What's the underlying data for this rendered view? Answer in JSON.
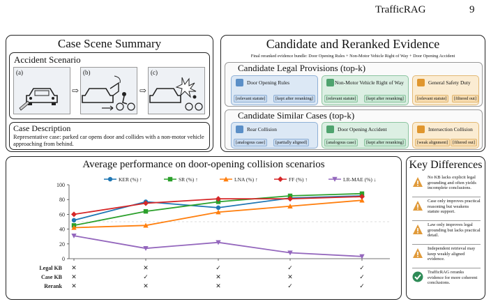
{
  "header": {
    "title": "TrafficRAG",
    "page": "9"
  },
  "case_summary": {
    "title": "Case Scene Summary",
    "accident_label": "Accident Scenario",
    "scene_labels": [
      "(a)",
      "(b)",
      "(c)"
    ],
    "arrow": "⇨",
    "description_label": "Case Description",
    "description": "Representative case: parked car opens door and collides with a non-motor vehicle approaching from behind."
  },
  "evidence": {
    "title": "Candidate and Reranked Evidence",
    "bundle": "Final reranked evidence bundle: Door Opening Rules + Non-Motor Vehicle Right of Way + Door Opening Accident",
    "legal_title": "Candidate Legal Provisions (top-k)",
    "legal": [
      {
        "name": "Door Opening Rules",
        "tags": [
          "[relevant statute]",
          "[kept after reranking]"
        ],
        "color": "#dce8f5"
      },
      {
        "name": "Non-Motor Vehicle Right of Way",
        "tags": [
          "[relevant statute]",
          "[kept after reranking]"
        ],
        "color": "#dcefe3"
      },
      {
        "name": "General Safety Duty",
        "tags": [
          "[relevant statute]",
          "[filtered out]"
        ],
        "color": "#fbecd2"
      }
    ],
    "cases_title": "Candidate Similar Cases (top-k)",
    "cases": [
      {
        "name": "Rear Collision",
        "tags": [
          "[analogous case]",
          "[partially aligned]"
        ],
        "color": "#dce8f5"
      },
      {
        "name": "Door Opening Accident",
        "tags": [
          "[analogous case]",
          "[kept after reranking]"
        ],
        "color": "#dcefe3"
      },
      {
        "name": "Intersection Collision",
        "tags": [
          "[weak alignment]",
          "[filtered out]"
        ],
        "color": "#fbecd2"
      }
    ]
  },
  "chart_data": {
    "type": "line",
    "title": "Average performance on door-opening collision scenarios",
    "ylim": [
      0,
      100
    ],
    "yticks": [
      0,
      20,
      40,
      60,
      80,
      100
    ],
    "grid": false,
    "legend_position": "top",
    "series": [
      {
        "name": "KER (%) ↑",
        "color": "#1f77b4",
        "marker": "circle",
        "values": [
          52,
          77,
          69,
          82,
          85
        ]
      },
      {
        "name": "SR (%) ↑",
        "color": "#2ca02c",
        "marker": "square",
        "values": [
          45,
          64,
          77,
          85,
          88
        ]
      },
      {
        "name": "LNA (%) ↑",
        "color": "#ff7f0e",
        "marker": "triangle",
        "values": [
          42,
          45,
          63,
          71,
          79
        ]
      },
      {
        "name": "FF (%) ↑",
        "color": "#d62728",
        "marker": "diamond",
        "values": [
          60,
          75,
          81,
          81,
          84
        ]
      },
      {
        "name": "LR-MAE (%) ↓",
        "color": "#9467bd",
        "marker": "triangle-down",
        "values": [
          31,
          14,
          22,
          8,
          3
        ]
      }
    ],
    "table_rows": [
      {
        "label": "Legal KB",
        "marks": [
          "✕",
          "✕",
          "✓",
          "✓",
          "✓"
        ]
      },
      {
        "label": "Case KB",
        "marks": [
          "✕",
          "✓",
          "✕",
          "✕",
          "✓"
        ]
      },
      {
        "label": "Rerank",
        "marks": [
          "✕",
          "✕",
          "✕",
          "✓",
          "✓"
        ]
      }
    ]
  },
  "key_differences": {
    "title": "Key Differences",
    "items": [
      {
        "text": "No KB lacks explicit legal grounding and often yields incomplete conclusions.",
        "icon": "warning-icon"
      },
      {
        "text": "Case only improves practical reasoning but weakens statute support.",
        "icon": "warning-icon"
      },
      {
        "text": "Law only improves legal grounding but lacks practical detail.",
        "icon": "warning-icon"
      },
      {
        "text": "Independent retrieval may keep weakly aligned evidence.",
        "icon": "warning-icon"
      },
      {
        "text": "TrafficRAG reranks evidence for more coherent conclusions.",
        "icon": "check-icon"
      }
    ]
  }
}
